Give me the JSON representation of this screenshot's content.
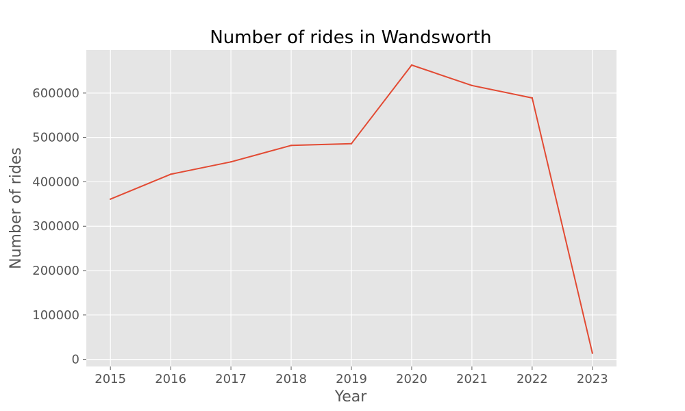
{
  "chart_data": {
    "type": "line",
    "title": "Number of rides in Wandsworth",
    "xlabel": "Year",
    "ylabel": "Number of rides",
    "xlim": [
      2014.6,
      2023.4
    ],
    "ylim": [
      -16000,
      697000
    ],
    "x_ticks": [
      "2015",
      "2016",
      "2017",
      "2018",
      "2019",
      "2020",
      "2021",
      "2022",
      "2023"
    ],
    "y_ticks": [
      "0",
      "100000",
      "200000",
      "300000",
      "400000",
      "500000",
      "600000"
    ],
    "grid": true,
    "background": "#E5E5E5",
    "series": [
      {
        "color": "#E24A33",
        "x": [
          2015,
          2016,
          2017,
          2018,
          2019,
          2020,
          2021,
          2022,
          2023
        ],
        "values": [
          361000,
          417000,
          445000,
          482000,
          486000,
          663000,
          617000,
          589000,
          14000
        ]
      }
    ]
  }
}
